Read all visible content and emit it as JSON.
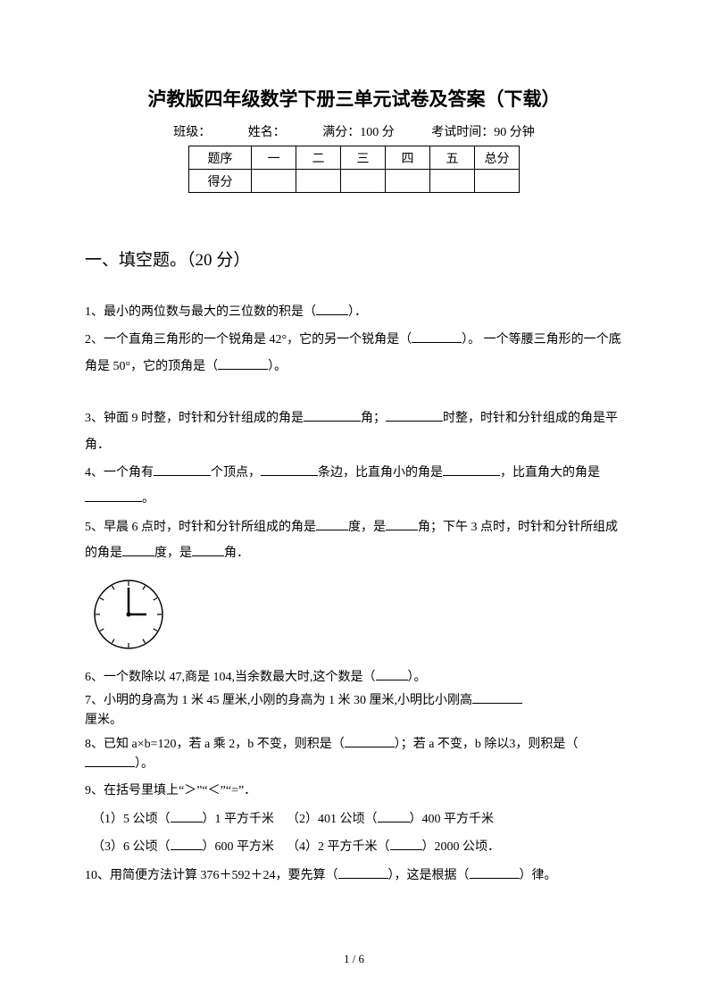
{
  "title": "泸教版四年级数学下册三单元试卷及答案（下载）",
  "info": {
    "class_label": "班级：",
    "name_label": "姓名：",
    "fullmark_label": "满分：100 分",
    "time_label": "考试时间：90 分钟"
  },
  "score_table": {
    "row1": [
      "题序",
      "一",
      "二",
      "三",
      "四",
      "五",
      "总分"
    ],
    "row2_label": "得分"
  },
  "section1": {
    "heading": "一、填空题。（20 分）",
    "q1_a": "1、最小的两位数与最大的三位数的积是（",
    "q1_b": "）．",
    "q2_a": "2、一个直角三角形的一个锐角是 42°，它的另一个锐角是（",
    "q2_b": "）。 一个等腰三角形的一个底角是 50°，它的顶角是（",
    "q2_c": "）。",
    "q3_a": "3、钟面 9 时整，时针和分针组成的角是",
    "q3_b": "角；",
    "q3_c": "时整，时针和分针组成的角是平角．",
    "q4_a": "4、一个角有",
    "q4_b": "个顶点，",
    "q4_c": "条边，比直角小的角是",
    "q4_d": "，比直角大的角是",
    "q4_e": "。",
    "q5_a": "5、早晨 6 点时，时针和分针所组成的角是",
    "q5_b": "度，是",
    "q5_c": "角；下午 3 点时，时针和分针所组成的角是",
    "q5_d": "度，是",
    "q5_e": "角．",
    "q6_a": "6、一个数除以 47,商是 104,当余数最大时,这个数是（",
    "q6_b": "）。",
    "q7_a": "7、小明的身高为 1 米 45 厘米,小刚的身高为 1 米 30 厘米,小明比小刚高",
    "q7_b": "厘米。",
    "q8_a": "8、已知 a×b=120，若 a 乘 2，b 不变，则积是（",
    "q8_b": "）；若 a 不变，b 除以3，则积是（",
    "q8_c": "）。",
    "q9": "9、在括号里填上“＞”“＜”“=”．",
    "q9_1a": "（1）5 公顷（",
    "q9_1b": "）1 平方千米",
    "q9_2a": "（2）401 公顷（",
    "q9_2b": "）400 平方千米",
    "q9_3a": "（3）6 公顷（",
    "q9_3b": "）600 平方米",
    "q9_4a": "（4）2 平方千米（",
    "q9_4b": "）2000 公顷．",
    "q10_a": "10、用简便方法计算 376＋592＋24，要先算（",
    "q10_b": "），这是根据（",
    "q10_c": "）律。"
  },
  "clock": {
    "radius": 38,
    "stroke": "#000000",
    "stroke_width": 1.5,
    "tick_length": 6,
    "hour_hand_angle_deg": 0,
    "hour_hand_length": 20,
    "minute_hand_angle_deg": -90,
    "minute_hand_length": 30,
    "hand_width": 2.5
  },
  "page_number": "1 / 6"
}
